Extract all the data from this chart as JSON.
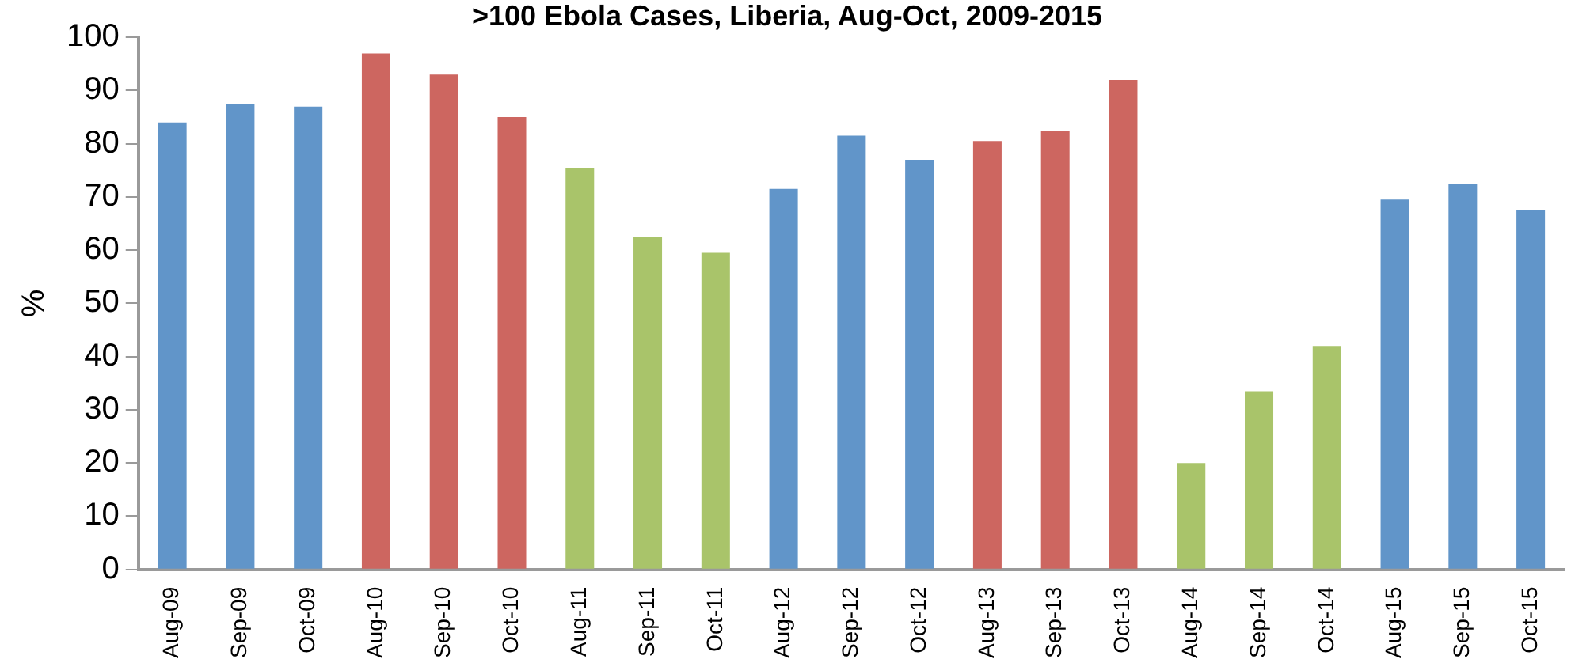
{
  "chart_data": {
    "type": "bar",
    "title": ">100 Ebola Cases, Liberia, Aug-Oct, 2009-2015",
    "ylabel": "%",
    "categories": [
      "Aug-09",
      "Sep-09",
      "Oct-09",
      "Aug-10",
      "Sep-10",
      "Oct-10",
      "Aug-11",
      "Sep-11",
      "Oct-11",
      "Aug-12",
      "Sep-12",
      "Oct-12",
      "Aug-13",
      "Sep-13",
      "Oct-13",
      "Aug-14",
      "Sep-14",
      "Oct-14",
      "Aug-15",
      "Sep-15",
      "Oct-15"
    ],
    "values": [
      84,
      87.5,
      87,
      97,
      93,
      85,
      75.5,
      62.5,
      59.5,
      71.5,
      81.5,
      77,
      80.5,
      82.5,
      92,
      20,
      33.5,
      42,
      69.5,
      72.5,
      67.5
    ],
    "colors": [
      "#6195c9",
      "#6195c9",
      "#6195c9",
      "#cd6660",
      "#cd6660",
      "#cd6660",
      "#a9c46a",
      "#a9c46a",
      "#a9c46a",
      "#6195c9",
      "#6195c9",
      "#6195c9",
      "#cd6660",
      "#cd6660",
      "#cd6660",
      "#a9c46a",
      "#a9c46a",
      "#a9c46a",
      "#6195c9",
      "#6195c9",
      "#6195c9"
    ],
    "ylim": [
      0,
      100
    ],
    "yticks": [
      0,
      10,
      20,
      30,
      40,
      50,
      60,
      70,
      80,
      90,
      100
    ],
    "grid": false,
    "legend": false
  }
}
